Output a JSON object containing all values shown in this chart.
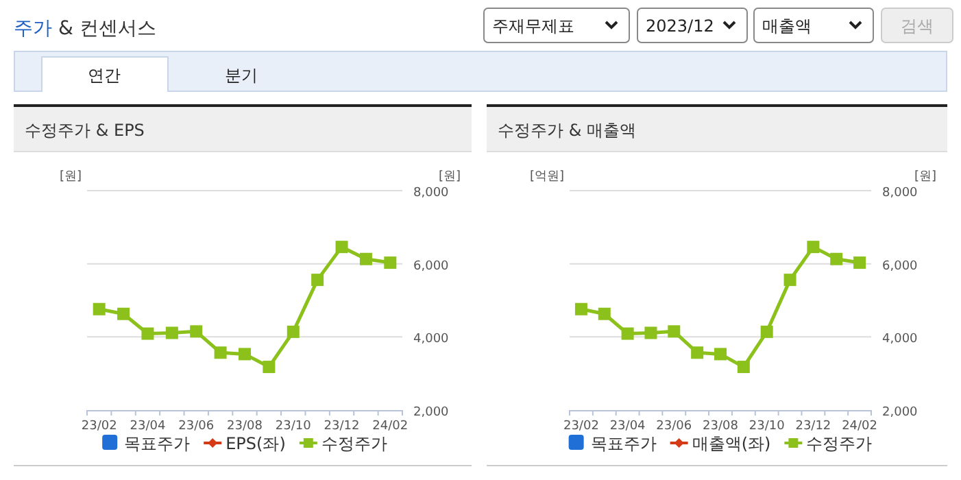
{
  "chart_data": [
    {
      "type": "other",
      "title": "주가 & 컨센서스",
      "annotations": [
        "주재무제표",
        "2023/12",
        "매출액",
        "검색",
        "연간",
        "분기"
      ]
    },
    {
      "type": "line",
      "title": "수정주가 & EPS",
      "ylabel": "[원]",
      "y2label": "[원]",
      "categories": [
        "23/02",
        null,
        "23/04",
        null,
        "23/06",
        null,
        "23/08",
        null,
        "23/10",
        null,
        "23/12",
        null,
        "24/02"
      ],
      "y2lim": [
        2000,
        8000
      ],
      "y2ticks": [
        {
          "value": 2000,
          "label": "2,000"
        },
        {
          "value": 4000,
          "label": "4,000"
        },
        {
          "value": 6000,
          "label": "6,000"
        },
        {
          "value": 8000,
          "label": "8,000"
        }
      ],
      "grid": true,
      "legend": "bottom",
      "series": [
        {
          "name": "목표주가",
          "type": "bar",
          "color": "#1f6fd6",
          "values": [
            null,
            null,
            null,
            null,
            null,
            null,
            null,
            null,
            null,
            null,
            null,
            null,
            null
          ]
        },
        {
          "name": "EPS(좌)",
          "type": "line",
          "marker": "diamond",
          "color": "#d43a16",
          "values": [
            null,
            null,
            null,
            null,
            null,
            null,
            null,
            null,
            null,
            null,
            null,
            null,
            null
          ]
        },
        {
          "name": "수정주가",
          "type": "line",
          "axis": "y2",
          "marker": "square",
          "color": "#8cc11c",
          "values": [
            4760,
            4630,
            4090,
            4110,
            4150,
            3570,
            3530,
            3180,
            4140,
            5560,
            6460,
            6130,
            6030
          ]
        }
      ]
    },
    {
      "type": "line",
      "title": "수정주가 & 매출액",
      "ylabel": "[억원]",
      "y2label": "[원]",
      "categories": [
        "23/02",
        null,
        "23/04",
        null,
        "23/06",
        null,
        "23/08",
        null,
        "23/10",
        null,
        "23/12",
        null,
        "24/02"
      ],
      "y2lim": [
        2000,
        8000
      ],
      "y2ticks": [
        {
          "value": 2000,
          "label": "2,000"
        },
        {
          "value": 4000,
          "label": "4,000"
        },
        {
          "value": 6000,
          "label": "6,000"
        },
        {
          "value": 8000,
          "label": "8,000"
        }
      ],
      "grid": true,
      "legend": "bottom",
      "series": [
        {
          "name": "목표주가",
          "type": "bar",
          "color": "#1f6fd6",
          "values": [
            null,
            null,
            null,
            null,
            null,
            null,
            null,
            null,
            null,
            null,
            null,
            null,
            null
          ]
        },
        {
          "name": "매출액(좌)",
          "type": "line",
          "marker": "diamond",
          "color": "#d43a16",
          "values": [
            null,
            null,
            null,
            null,
            null,
            null,
            null,
            null,
            null,
            null,
            null,
            null,
            null
          ]
        },
        {
          "name": "수정주가",
          "type": "line",
          "axis": "y2",
          "marker": "square",
          "color": "#8cc11c",
          "values": [
            4760,
            4630,
            4090,
            4110,
            4150,
            3570,
            3530,
            3180,
            4140,
            5560,
            6460,
            6130,
            6030
          ]
        }
      ]
    }
  ]
}
